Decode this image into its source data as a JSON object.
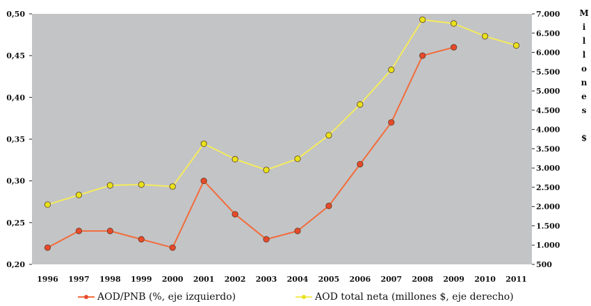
{
  "chart_data": {
    "type": "line",
    "title": "",
    "categories": [
      "1996",
      "1997",
      "1998",
      "1999",
      "2000",
      "2001",
      "2002",
      "2003",
      "2004",
      "2005",
      "2006",
      "2007",
      "2008",
      "2009",
      "2010",
      "2011"
    ],
    "y_left": {
      "ylim": [
        0.2,
        0.5
      ],
      "ticks": [
        "0,20",
        "0,25",
        "0,30",
        "0,35",
        "0,40",
        "0,45",
        "0,50"
      ]
    },
    "y_right": {
      "ylim": [
        500,
        7000
      ],
      "ticks": [
        "500",
        "1.000",
        "1.500",
        "2.000",
        "2.500",
        "3.000",
        "3.500",
        "4.000",
        "4.500",
        "5.000",
        "5.500",
        "6.000",
        "6.500",
        "7.000"
      ],
      "label_letters": [
        "M",
        "i",
        "l",
        "l",
        "o",
        "n",
        "e",
        "s",
        "",
        "$"
      ]
    },
    "series": [
      {
        "name": "AOD/PNB (%, eje izquierdo)",
        "axis": "left",
        "color": "#f26b3a",
        "marker_color": "#e8492b",
        "values": [
          0.22,
          0.24,
          0.24,
          0.23,
          0.22,
          0.3,
          0.26,
          0.23,
          0.24,
          0.27,
          0.32,
          0.37,
          0.45,
          0.46,
          null,
          null
        ]
      },
      {
        "name": "AOD total neta (millones $, eje derecho)",
        "axis": "right",
        "color": "#f5ec5a",
        "marker_color": "#e8e21a",
        "values": [
          2050,
          2300,
          2550,
          2570,
          2520,
          3630,
          3230,
          2950,
          3240,
          3850,
          4650,
          5550,
          6850,
          6750,
          6420,
          6180
        ]
      }
    ],
    "grid": false,
    "legend_position": "bottom",
    "plot_background": "#c3c4c6"
  }
}
